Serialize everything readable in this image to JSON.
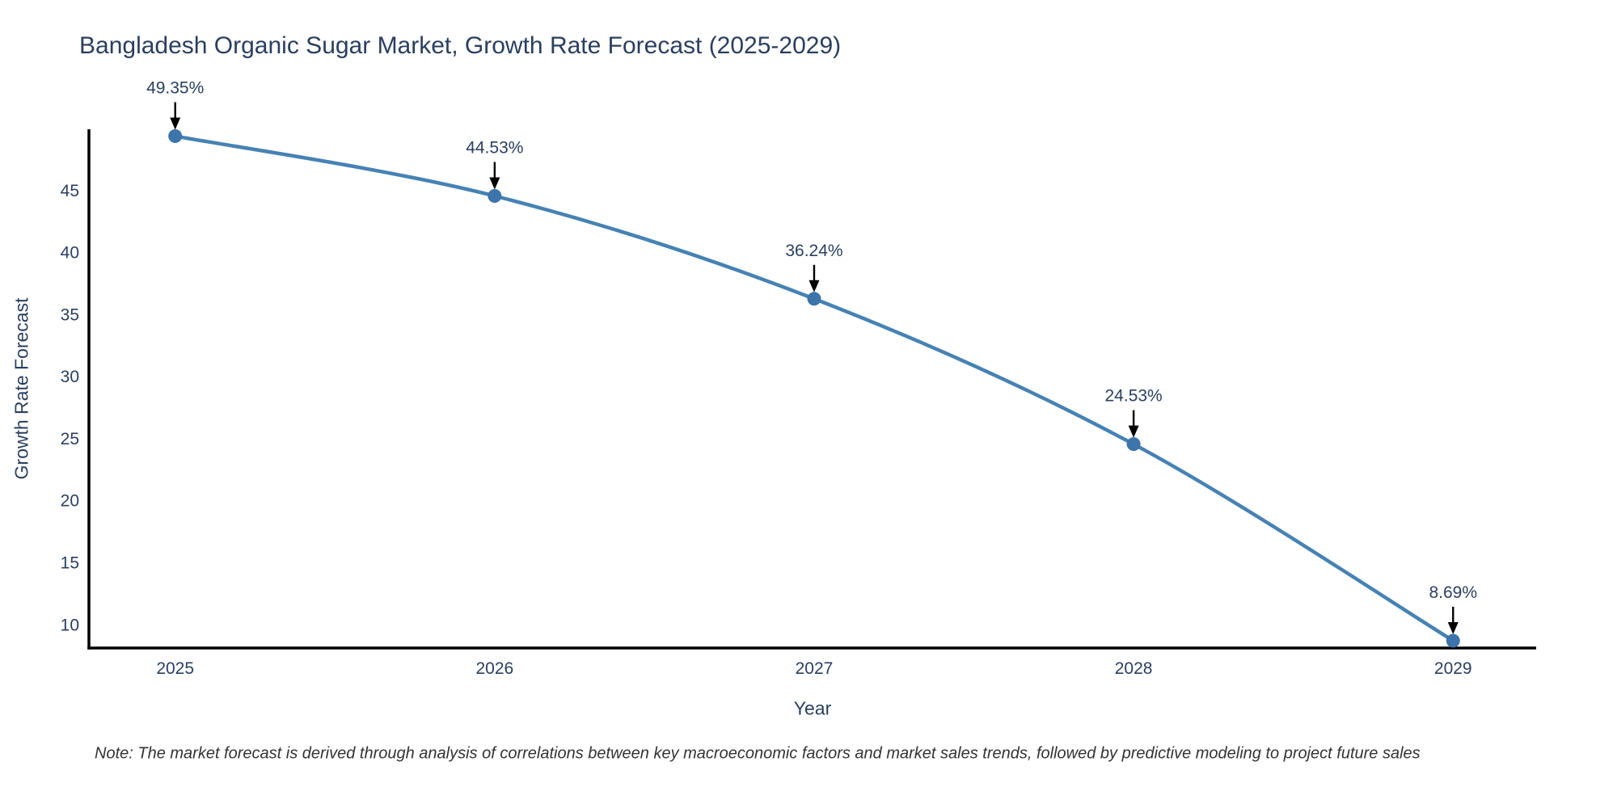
{
  "page": {
    "background": "#ffffff"
  },
  "chart_data": {
    "type": "line",
    "title": "Bangladesh Organic Sugar Market, Growth Rate Forecast (2025-2029)",
    "xlabel": "Year",
    "ylabel": "Growth Rate Forecast",
    "x": [
      2025,
      2026,
      2027,
      2028,
      2029
    ],
    "series": [
      {
        "name": "Growth Rate Forecast",
        "values": [
          49.35,
          44.53,
          36.24,
          24.53,
          8.69
        ]
      }
    ],
    "point_labels": [
      "49.35%",
      "44.53%",
      "36.24%",
      "24.53%",
      "8.69%"
    ],
    "xticks": [
      "2025",
      "2026",
      "2027",
      "2028",
      "2029"
    ],
    "yticks": [
      10,
      15,
      20,
      25,
      30,
      35,
      40,
      45
    ],
    "xlim": [
      2024.73,
      2029.26
    ],
    "ylim": [
      8.1,
      49.9
    ],
    "grid": false,
    "legend_position": "none",
    "line_shape": "spline",
    "annotation_style": "value labels above points with downward black arrows",
    "colors": {
      "line": "#4682b4",
      "marker": "#3c74ab",
      "axis": "#000000",
      "text": "#2a3f5f",
      "arrow": "#000000",
      "note_text": "#333333"
    }
  },
  "note": {
    "text": "Note: The market forecast is derived through analysis of correlations between key macroeconomic factors and market sales trends, followed by predictive modeling to project future sales"
  }
}
